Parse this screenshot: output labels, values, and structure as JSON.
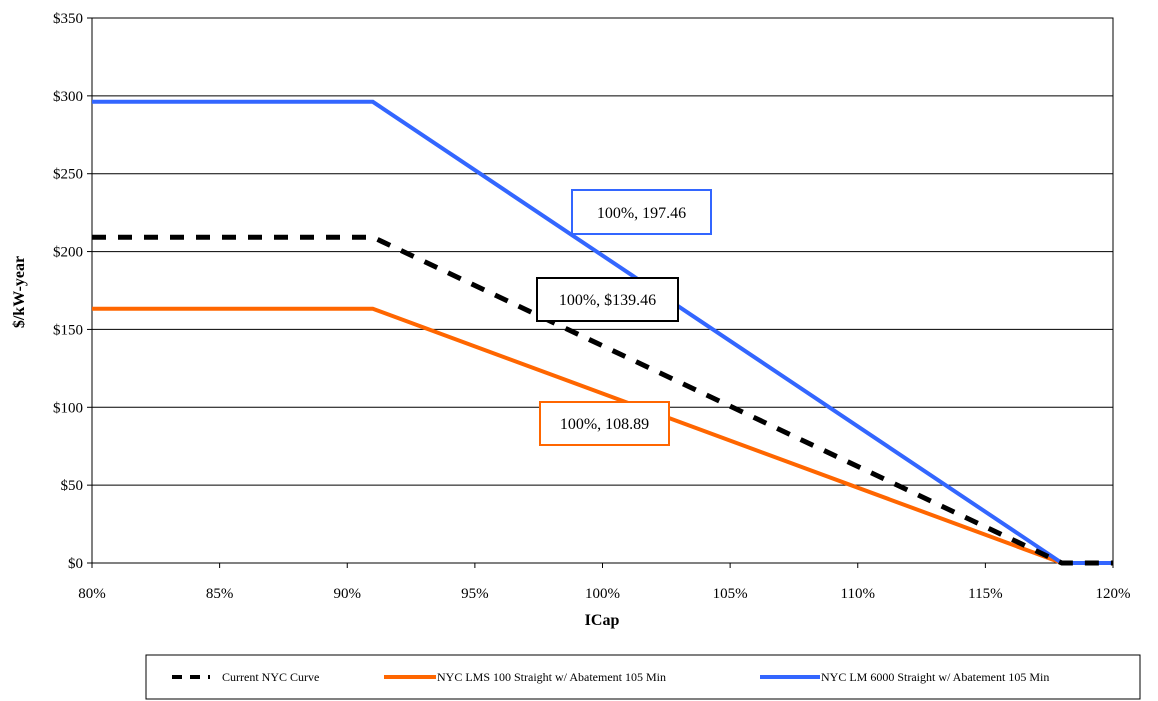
{
  "chart_data": {
    "type": "line",
    "title": "",
    "xlabel": "ICap",
    "ylabel": "$/kW-year",
    "xlim": [
      80,
      120
    ],
    "ylim": [
      0,
      350
    ],
    "x_ticks": [
      80,
      85,
      90,
      95,
      100,
      105,
      110,
      115,
      120
    ],
    "x_tick_labels": [
      "80%",
      "85%",
      "90%",
      "95%",
      "100%",
      "105%",
      "110%",
      "115%",
      "120%"
    ],
    "y_ticks": [
      0,
      50,
      100,
      150,
      200,
      250,
      300,
      350
    ],
    "y_tick_labels": [
      "$0",
      "$50",
      "$100",
      "$150",
      "$200",
      "$250",
      "$300",
      "$350"
    ],
    "grid": "horizontal",
    "legend_position": "bottom",
    "series": [
      {
        "name": "Current NYC Curve",
        "color": "#000000",
        "style": "dashed",
        "x": [
          80,
          91,
          118,
          120
        ],
        "y": [
          209.2,
          209.2,
          0,
          0
        ]
      },
      {
        "name": "NYC LMS 100 Straight w/ Abatement 105 Min",
        "color": "#FF6600",
        "style": "solid",
        "x": [
          80,
          91,
          118,
          120
        ],
        "y": [
          163.3,
          163.3,
          0,
          0
        ]
      },
      {
        "name": "NYC LM 6000 Straight w/ Abatement 105 Min",
        "color": "#3366FF",
        "style": "solid",
        "x": [
          80,
          91,
          118,
          120
        ],
        "y": [
          296.2,
          296.2,
          0,
          0
        ]
      }
    ],
    "annotations": [
      {
        "text": "100%, 197.46",
        "color": "#3366FF"
      },
      {
        "text": "100%, $139.46",
        "color": "#000000"
      },
      {
        "text": "100%, 108.89",
        "color": "#FF6600"
      }
    ]
  }
}
